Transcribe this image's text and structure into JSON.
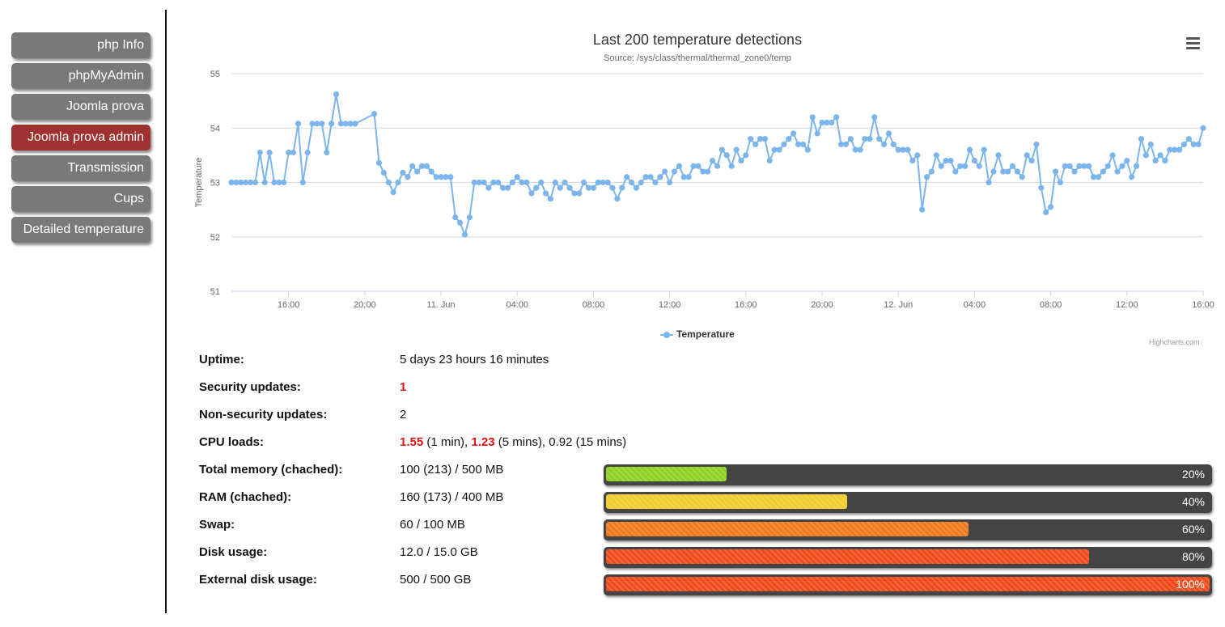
{
  "sidebar": {
    "items": [
      {
        "label": "php Info",
        "active": false
      },
      {
        "label": "phpMyAdmin",
        "active": false
      },
      {
        "label": "Joomla prova",
        "active": false
      },
      {
        "label": "Joomla prova admin",
        "active": true
      },
      {
        "label": "Transmission",
        "active": false
      },
      {
        "label": "Cups",
        "active": false
      },
      {
        "label": "Detailed temperature",
        "active": false
      }
    ]
  },
  "chart": {
    "credits": "Highcharts.com"
  },
  "chart_data": {
    "type": "line",
    "title": "Last 200 temperature detections",
    "subtitle": "Source: /sys/class/thermal/thermal_zone0/temp",
    "ylabel": "Temperature",
    "xlabel": "",
    "ylim": [
      51,
      55
    ],
    "yticks": [
      "51",
      "52",
      "53",
      "54",
      "55"
    ],
    "xticks": [
      "16:00",
      "20:00",
      "11. Jun",
      "04:00",
      "08:00",
      "12:00",
      "16:00",
      "20:00",
      "12. Jun",
      "04:00",
      "08:00",
      "12:00",
      "16:00"
    ],
    "xrange_hours": [
      "10 Jun 13:00",
      "12 Jun 16:00"
    ],
    "grid": true,
    "legend": "bottom-center",
    "series": [
      {
        "name": "Temperature",
        "color": "#7cb5ec",
        "x_hours": [
          0.0,
          0.25,
          0.5,
          0.75,
          1.0,
          1.25,
          1.5,
          1.75,
          2.0,
          2.25,
          2.5,
          2.75,
          3.0,
          3.25,
          3.5,
          3.75,
          4.0,
          4.25,
          4.5,
          4.75,
          5.0,
          5.25,
          5.5,
          5.75,
          6.0,
          6.25,
          6.5,
          7.5,
          7.75,
          8.0,
          8.25,
          8.5,
          8.75,
          9.0,
          9.25,
          9.5,
          9.75,
          10.0,
          10.25,
          10.5,
          10.75,
          11.0,
          11.25,
          11.5,
          11.75,
          12.0,
          12.25,
          12.5,
          12.75,
          13.0,
          13.25,
          13.5,
          13.75,
          14.0,
          14.25,
          14.5,
          14.75,
          15.0,
          15.25,
          15.5,
          15.75,
          16.0,
          16.25,
          16.5,
          16.75,
          17.0,
          17.25,
          17.5,
          17.75,
          18.0,
          18.25,
          18.5,
          18.75,
          19.0,
          19.25,
          19.5,
          19.75,
          20.0,
          20.25,
          20.5,
          20.75,
          21.0,
          21.25,
          21.5,
          21.75,
          22.0,
          22.25,
          22.5,
          22.75,
          23.0,
          23.25,
          23.5,
          23.75,
          24.0,
          24.25,
          24.5,
          24.75,
          25.0,
          25.25,
          25.5,
          25.75,
          26.0,
          26.25,
          26.5,
          26.75,
          27.0,
          27.25,
          27.5,
          27.75,
          28.0,
          28.25,
          28.5,
          28.75,
          29.0,
          29.25,
          29.5,
          29.75,
          30.0,
          30.25,
          30.5,
          30.75,
          31.0,
          31.25,
          31.5,
          31.75,
          32.0,
          32.25,
          32.5,
          32.75,
          33.0,
          33.25,
          33.5,
          33.75,
          34.0,
          34.25,
          34.5,
          34.75,
          35.0,
          35.25,
          35.5,
          35.75,
          36.0,
          36.25,
          36.5,
          36.75,
          37.0,
          37.25,
          37.5,
          37.75,
          38.0,
          38.25,
          38.5,
          38.75,
          39.0,
          39.25,
          39.5,
          39.75,
          40.0,
          40.25,
          40.5,
          40.75,
          41.0,
          41.25,
          41.5,
          41.75,
          42.0,
          42.25,
          42.5,
          42.75,
          43.0,
          43.25,
          43.5,
          43.75,
          44.0,
          44.25,
          44.5,
          44.75,
          45.0,
          45.25,
          45.5,
          45.75,
          46.0,
          46.25,
          46.5,
          46.75,
          47.0,
          47.25,
          47.5,
          47.75,
          48.0,
          48.25,
          48.5,
          48.75,
          49.0,
          49.25,
          49.5,
          49.75,
          50.0,
          50.25,
          50.5,
          50.75,
          51.0
        ],
        "values": [
          53.0,
          53.0,
          53.0,
          53.0,
          53.0,
          53.0,
          53.55,
          53.0,
          53.55,
          53.0,
          53.0,
          53.0,
          53.55,
          53.55,
          54.08,
          53.0,
          53.55,
          54.08,
          54.08,
          54.08,
          53.55,
          54.08,
          54.62,
          54.08,
          54.08,
          54.08,
          54.08,
          54.26,
          53.36,
          53.18,
          53.0,
          52.82,
          53.0,
          53.18,
          53.1,
          53.3,
          53.2,
          53.3,
          53.3,
          53.2,
          53.1,
          53.1,
          53.1,
          53.1,
          52.36,
          52.26,
          52.04,
          52.36,
          53.0,
          53.0,
          53.0,
          52.9,
          53.0,
          53.0,
          52.9,
          52.9,
          53.0,
          53.1,
          53.0,
          53.0,
          52.8,
          52.9,
          53.0,
          52.8,
          52.7,
          53.0,
          52.9,
          53.0,
          52.9,
          52.8,
          52.8,
          53.0,
          52.9,
          52.9,
          53.0,
          53.0,
          53.0,
          52.9,
          52.7,
          52.9,
          53.1,
          53.0,
          52.9,
          53.0,
          53.1,
          53.1,
          53.0,
          53.1,
          53.2,
          53.0,
          53.2,
          53.3,
          53.1,
          53.1,
          53.3,
          53.3,
          53.2,
          53.2,
          53.4,
          53.3,
          53.6,
          53.5,
          53.3,
          53.6,
          53.4,
          53.5,
          53.8,
          53.7,
          53.8,
          53.8,
          53.4,
          53.6,
          53.6,
          53.7,
          53.8,
          53.9,
          53.7,
          53.7,
          53.6,
          54.2,
          53.9,
          54.1,
          54.1,
          54.1,
          54.2,
          53.7,
          53.7,
          53.8,
          53.6,
          53.6,
          53.8,
          53.8,
          54.2,
          53.8,
          53.7,
          53.9,
          53.7,
          53.6,
          53.6,
          53.6,
          53.4,
          53.5,
          52.5,
          53.1,
          53.2,
          53.5,
          53.3,
          53.4,
          53.4,
          53.2,
          53.3,
          53.3,
          53.6,
          53.4,
          53.3,
          53.6,
          53.0,
          53.2,
          53.5,
          53.2,
          53.2,
          53.3,
          53.2,
          53.1,
          53.5,
          53.4,
          53.7,
          52.9,
          52.45,
          52.55,
          53.2,
          53.0,
          53.3,
          53.3,
          53.2,
          53.3,
          53.3,
          53.3,
          53.1,
          53.1,
          53.2,
          53.3,
          53.5,
          53.2,
          53.3,
          53.4,
          53.1,
          53.3,
          53.8,
          53.5,
          53.7,
          53.4,
          53.5,
          53.4,
          53.6,
          53.6,
          53.6,
          53.7,
          53.8,
          53.7,
          53.7,
          54.0
        ]
      }
    ]
  },
  "stats": [
    {
      "label": "Uptime:",
      "value": "5 days 23 hours 16 minutes"
    },
    {
      "label": "Security updates:",
      "value": "1"
    },
    {
      "label": "Non-security updates:",
      "value": "2"
    },
    {
      "label": "CPU loads:",
      "load1": "1.55",
      "load1_unit": "(1 min),",
      "load5": "1.23",
      "load5_unit": "(5 mins),",
      "load15": "0.92 (15 mins)"
    },
    {
      "label": "Total memory (chached):",
      "value": "100 (213) / 500 MB",
      "percent_label": "20%",
      "percent": 20,
      "color": "#8ed321"
    },
    {
      "label": "RAM (chached):",
      "value": "160 (173) / 400 MB",
      "percent_label": "40%",
      "percent": 40,
      "color": "#f2cc2a"
    },
    {
      "label": "Swap:",
      "value": "60 / 100 MB",
      "percent_label": "60%",
      "percent": 60,
      "color": "#f07a1e"
    },
    {
      "label": "Disk usage:",
      "value": "12.0 / 15.0 GB",
      "percent_label": "80%",
      "percent": 80,
      "color": "#f24a1c"
    },
    {
      "label": "External disk usage:",
      "value": "500 / 500 GB",
      "percent_label": "100%",
      "percent": 100,
      "color": "#f24a1c"
    }
  ]
}
